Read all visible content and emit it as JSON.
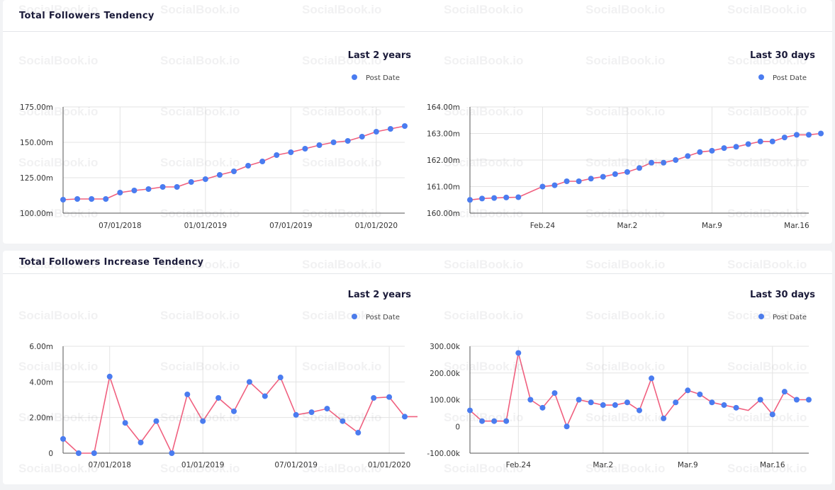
{
  "watermark": "SocialBook.io",
  "colors": {
    "line": "#f0607f",
    "point": "#4a7cf0",
    "grid": "#e3e3e3",
    "axis": "#555555",
    "title": "#1b1b3a"
  },
  "sections": [
    {
      "title": "Total Followers Tendency"
    },
    {
      "title": "Total Followers Increase Tendency"
    }
  ],
  "chart_data": [
    {
      "type": "line",
      "title": "Last 2 years",
      "legend": "Post Date",
      "legend_position": "top-right",
      "grid": true,
      "x": [
        0,
        0.5,
        1,
        1.5,
        2,
        2.5,
        3,
        3.5,
        4,
        4.5,
        5,
        5.5,
        6,
        6.5,
        7,
        7.5,
        8,
        8.5,
        9,
        9.5,
        10,
        10.5,
        11,
        11.5,
        12
      ],
      "y": [
        109.5,
        110,
        110,
        110,
        114.5,
        116,
        117,
        118.5,
        118.5,
        122,
        124,
        127,
        129.5,
        133.5,
        136.5,
        141,
        143,
        145.5,
        148,
        150,
        151,
        154,
        157.5,
        159.5,
        161.5
      ],
      "ylim": [
        100,
        175
      ],
      "yticks": [
        100,
        125,
        150,
        175
      ],
      "ytick_labels": [
        "100.00m",
        "125.00m",
        "150.00m",
        "175.00m"
      ],
      "xlim": [
        0,
        12
      ],
      "xticks": [
        2,
        5,
        8,
        11
      ],
      "xtick_labels": [
        "07/01/2018",
        "01/01/2019",
        "07/01/2019",
        "01/01/2020"
      ]
    },
    {
      "type": "line",
      "title": "Last 30 days",
      "legend": "Post Date",
      "legend_position": "top-right",
      "grid": true,
      "x": [
        0,
        1,
        2,
        3,
        4,
        6,
        7,
        8,
        9,
        10,
        11,
        12,
        13,
        14,
        15,
        16,
        17,
        18,
        19,
        20,
        21,
        22,
        23,
        24,
        25,
        26,
        27,
        28,
        29
      ],
      "y": [
        160.5,
        160.55,
        160.57,
        160.59,
        160.6,
        161.0,
        161.05,
        161.2,
        161.2,
        161.3,
        161.37,
        161.47,
        161.55,
        161.7,
        161.9,
        161.9,
        162.0,
        162.15,
        162.3,
        162.35,
        162.45,
        162.5,
        162.6,
        162.7,
        162.7,
        162.85,
        162.95,
        162.95,
        163.0
      ],
      "ylim": [
        160,
        164
      ],
      "yticks": [
        160,
        161,
        162,
        163,
        164
      ],
      "ytick_labels": [
        "160.00m",
        "161.00m",
        "162.00m",
        "163.00m",
        "164.00m"
      ],
      "xlim": [
        0,
        28
      ],
      "xticks": [
        6,
        13,
        20,
        27
      ],
      "xtick_labels": [
        "Feb.24",
        "Mar.2",
        "Mar.9",
        "Mar.16"
      ]
    },
    {
      "type": "line",
      "title": "Last 2 years",
      "legend": "Post Date",
      "legend_position": "top-right",
      "grid": true,
      "x": [
        0,
        0.5,
        1,
        1.5,
        2,
        2.5,
        3,
        3.5,
        4,
        4.5,
        5,
        5.5,
        6,
        6.5,
        7,
        7.5,
        8,
        8.5,
        9,
        9.5,
        10,
        10.5,
        11,
        11.5
      ],
      "y": [
        0.8,
        0.0,
        0.0,
        4.3,
        1.7,
        0.6,
        1.8,
        0.0,
        3.3,
        1.8,
        3.1,
        2.35,
        4.0,
        3.2,
        4.25,
        2.15,
        2.3,
        2.5,
        1.8,
        1.15,
        3.1,
        3.15,
        2.05,
        2.05
      ],
      "ylim": [
        0,
        6
      ],
      "yticks": [
        0,
        2,
        4,
        6
      ],
      "ytick_labels": [
        "0",
        "2.00m",
        "4.00m",
        "6.00m"
      ],
      "xlim": [
        0,
        11
      ],
      "xticks": [
        1.5,
        4.5,
        7.5,
        10.5
      ],
      "xtick_labels": [
        "07/01/2018",
        "01/01/2019",
        "07/01/2019",
        "01/01/2020"
      ]
    },
    {
      "type": "line",
      "title": "Last 30 days",
      "legend": "Post Date",
      "legend_position": "top-right",
      "grid": true,
      "x": [
        0,
        1,
        2,
        3,
        4,
        5,
        6,
        7,
        8,
        9,
        10,
        11,
        12,
        13,
        14,
        15,
        16,
        17,
        18,
        19,
        20,
        21,
        22,
        23,
        24,
        25,
        26,
        27,
        28
      ],
      "y": [
        60,
        20,
        20,
        20,
        275,
        100,
        70,
        125,
        0,
        100,
        90,
        80,
        80,
        90,
        60,
        180,
        30,
        90,
        135,
        120,
        90,
        80,
        70,
        60,
        100,
        45,
        130,
        100,
        100
      ],
      "ylim": [
        -100,
        300
      ],
      "yticks": [
        -100,
        0,
        100,
        200,
        300
      ],
      "ytick_labels": [
        "-100.00k",
        "0",
        "100.00k",
        "200.00k",
        "300.00k"
      ],
      "xlim": [
        0,
        28
      ],
      "xticks": [
        4,
        11,
        18,
        25
      ],
      "xtick_labels": [
        "Feb.24",
        "Mar.2",
        "Mar.9",
        "Mar.16"
      ],
      "hidden_points": [
        23
      ]
    }
  ]
}
